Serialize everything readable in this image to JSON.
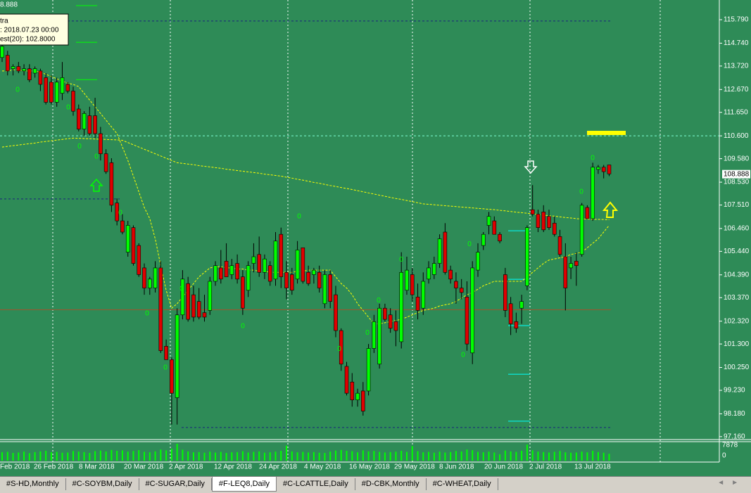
{
  "header_text": "8.888",
  "tooltip": {
    "lines": [
      "tra",
      ": 2018.07.23 00:00",
      "est(20): 102.8000"
    ]
  },
  "tabs": [
    "#S-HD,Monthly",
    "#C-SOYBM,Daily",
    "#C-SUGAR,Daily",
    "#F-LEQ8,Daily",
    "#C-LCATTLE,Daily",
    "#D-CBK,Monthly",
    "#C-WHEAT,Daily"
  ],
  "active_tab": "#F-LEQ8,Daily",
  "chart_data": {
    "type": "candlestick",
    "background": "#2e8b57",
    "up_color": "#00ff00",
    "down_color": "#e00000",
    "wick_color": "#000000",
    "ylim": [
      97.03,
      116.67
    ],
    "yticks": [
      {
        "value": 115.79,
        "label": "115.790"
      },
      {
        "value": 114.74,
        "label": "114.740"
      },
      {
        "value": 113.72,
        "label": "113.720"
      },
      {
        "value": 112.67,
        "label": "112.670"
      },
      {
        "value": 111.65,
        "label": "111.650"
      },
      {
        "value": 110.6,
        "label": "110.600"
      },
      {
        "value": 109.58,
        "label": "109.580"
      },
      {
        "value": 108.53,
        "label": "108.530"
      },
      {
        "value": 107.51,
        "label": "107.510"
      },
      {
        "value": 106.46,
        "label": "106.460"
      },
      {
        "value": 105.44,
        "label": "105.440"
      },
      {
        "value": 104.39,
        "label": "104.390"
      },
      {
        "value": 103.37,
        "label": "103.370"
      },
      {
        "value": 102.32,
        "label": "102.320"
      },
      {
        "value": 101.3,
        "label": "101.300"
      },
      {
        "value": 100.25,
        "label": "100.250"
      },
      {
        "value": 99.23,
        "label": "99.230"
      },
      {
        "value": 98.18,
        "label": "98.180"
      },
      {
        "value": 97.16,
        "label": "97.160"
      }
    ],
    "last": 108.888,
    "x_labels": [
      "Feb 2018",
      "26 Feb 2018",
      "8 Mar 2018",
      "20 Mar 2018",
      "2 Apr 2018",
      "12 Apr 2018",
      "24 Apr 2018",
      "4 May 2018",
      "16 May 2018",
      "29 May 2018",
      "8 Jun 2018",
      "20 Jun 2018",
      "2 Jul 2018",
      "13 Jul 2018"
    ],
    "ohlc": [
      [
        114.1,
        114.9,
        113.9,
        114.6
      ],
      [
        114.2,
        114.4,
        113.3,
        113.5
      ],
      [
        113.6,
        113.8,
        113.3,
        113.7
      ],
      [
        113.7,
        113.9,
        113.4,
        113.5
      ],
      [
        113.5,
        113.8,
        113.3,
        113.6
      ],
      [
        113.6,
        113.8,
        113.0,
        113.1
      ],
      [
        113.4,
        113.7,
        113.2,
        113.6
      ],
      [
        113.5,
        113.6,
        112.6,
        112.9
      ],
      [
        113.2,
        113.4,
        112.0,
        112.1
      ],
      [
        113.0,
        113.3,
        112.0,
        112.1
      ],
      [
        112.1,
        113.2,
        111.9,
        113.0
      ],
      [
        112.5,
        113.9,
        112.2,
        113.2
      ],
      [
        112.9,
        113.0,
        112.5,
        112.6
      ],
      [
        112.6,
        112.8,
        111.5,
        111.7
      ],
      [
        111.8,
        112.0,
        110.8,
        110.9
      ],
      [
        110.9,
        111.7,
        110.6,
        111.6
      ],
      [
        111.5,
        111.9,
        110.6,
        110.7
      ],
      [
        111.5,
        112.3,
        110.5,
        110.7
      ],
      [
        110.7,
        111.0,
        109.5,
        109.8
      ],
      [
        109.8,
        110.0,
        108.9,
        109.0
      ],
      [
        109.4,
        109.6,
        107.2,
        107.5
      ],
      [
        107.6,
        107.8,
        106.6,
        106.8
      ],
      [
        106.8,
        107.1,
        106.2,
        106.3
      ],
      [
        105.4,
        106.8,
        105.2,
        106.6
      ],
      [
        106.5,
        106.6,
        104.8,
        104.9
      ],
      [
        105.7,
        105.8,
        104.3,
        104.4
      ],
      [
        104.7,
        104.9,
        103.5,
        103.8
      ],
      [
        103.8,
        104.3,
        103.5,
        104.2
      ],
      [
        103.8,
        105.0,
        103.6,
        104.7
      ],
      [
        104.7,
        105.0,
        100.9,
        101.0
      ],
      [
        101.2,
        101.5,
        100.6,
        100.6
      ],
      [
        100.6,
        100.7,
        97.7,
        99.1
      ],
      [
        98.9,
        102.9,
        97.7,
        102.6
      ],
      [
        102.6,
        104.6,
        102.4,
        104.2
      ],
      [
        104.0,
        104.3,
        102.3,
        102.4
      ],
      [
        103.5,
        103.9,
        102.3,
        102.5
      ],
      [
        103.2,
        103.8,
        102.4,
        102.5
      ],
      [
        102.7,
        103.5,
        102.3,
        102.5
      ],
      [
        102.8,
        104.3,
        102.6,
        104.1
      ],
      [
        104.1,
        105.0,
        103.9,
        104.8
      ],
      [
        104.7,
        105.5,
        104.0,
        104.2
      ],
      [
        105.0,
        105.8,
        104.3,
        104.3
      ],
      [
        104.4,
        105.1,
        104.2,
        104.8
      ],
      [
        104.9,
        105.3,
        104.0,
        104.2
      ],
      [
        104.3,
        104.6,
        102.6,
        102.9
      ],
      [
        103.7,
        105.0,
        103.4,
        104.8
      ],
      [
        104.9,
        105.8,
        104.5,
        105.2
      ],
      [
        105.3,
        106.1,
        104.3,
        104.5
      ],
      [
        104.5,
        105.3,
        104.2,
        105.1
      ],
      [
        104.8,
        105.0,
        103.9,
        104.1
      ],
      [
        104.2,
        106.3,
        103.9,
        105.9
      ],
      [
        106.2,
        106.5,
        103.8,
        104.3
      ],
      [
        104.5,
        105.0,
        103.3,
        103.8
      ],
      [
        104.4,
        104.7,
        103.5,
        103.7
      ],
      [
        104.2,
        105.9,
        104.0,
        105.5
      ],
      [
        105.6,
        105.6,
        104.0,
        104.1
      ],
      [
        104.5,
        104.8,
        103.9,
        104.0
      ],
      [
        104.4,
        104.7,
        104.0,
        104.6
      ],
      [
        104.5,
        104.8,
        103.6,
        103.8
      ],
      [
        103.1,
        104.6,
        102.9,
        104.4
      ],
      [
        104.4,
        104.6,
        102.9,
        103.2
      ],
      [
        103.5,
        103.9,
        101.6,
        101.9
      ],
      [
        101.9,
        102.0,
        100.1,
        100.4
      ],
      [
        100.3,
        100.5,
        99.0,
        99.1
      ],
      [
        99.6,
        100.0,
        98.5,
        98.8
      ],
      [
        98.8,
        99.3,
        98.5,
        99.1
      ],
      [
        99.2,
        99.6,
        98.1,
        98.3
      ],
      [
        99.2,
        101.3,
        99.0,
        101.1
      ],
      [
        101.1,
        102.6,
        100.9,
        102.3
      ],
      [
        100.4,
        103.1,
        100.2,
        102.9
      ],
      [
        102.9,
        103.1,
        102.3,
        102.4
      ],
      [
        102.6,
        102.9,
        101.8,
        102.0
      ],
      [
        102.3,
        102.8,
        101.2,
        101.9
      ],
      [
        101.4,
        105.4,
        101.1,
        104.5
      ],
      [
        103.7,
        105.2,
        103.5,
        104.6
      ],
      [
        104.4,
        104.7,
        103.2,
        103.5
      ],
      [
        103.4,
        104.0,
        102.4,
        102.8
      ],
      [
        102.9,
        104.5,
        102.6,
        104.1
      ],
      [
        104.2,
        105.0,
        104.0,
        104.7
      ],
      [
        104.4,
        105.2,
        104.2,
        104.9
      ],
      [
        104.9,
        106.2,
        104.7,
        106.0
      ],
      [
        106.3,
        106.7,
        104.4,
        104.5
      ],
      [
        104.6,
        104.8,
        104.0,
        104.2
      ],
      [
        104.1,
        104.5,
        103.1,
        103.8
      ],
      [
        103.8,
        104.2,
        103.3,
        103.6
      ],
      [
        103.4,
        104.1,
        101.0,
        101.3
      ],
      [
        100.9,
        105.0,
        100.4,
        104.7
      ],
      [
        104.6,
        105.8,
        104.3,
        105.4
      ],
      [
        105.7,
        106.3,
        105.5,
        106.2
      ],
      [
        106.6,
        107.2,
        106.2,
        107.0
      ],
      [
        106.8,
        107.0,
        106.2,
        106.2
      ],
      [
        106.2,
        106.3,
        105.8,
        105.9
      ],
      [
        104.4,
        104.7,
        102.5,
        102.8
      ],
      [
        103.1,
        103.4,
        101.7,
        102.2
      ],
      [
        102.3,
        102.7,
        101.8,
        102.0
      ],
      [
        102.9,
        103.5,
        102.2,
        103.2
      ],
      [
        103.9,
        106.6,
        103.7,
        106.5
      ],
      [
        107.3,
        108.4,
        107.0,
        107.1
      ],
      [
        107.1,
        107.3,
        106.3,
        106.5
      ],
      [
        107.2,
        107.5,
        106.3,
        106.4
      ],
      [
        107.0,
        107.3,
        106.4,
        106.5
      ],
      [
        106.7,
        107.0,
        106.1,
        106.2
      ],
      [
        106.1,
        106.4,
        105.2,
        105.3
      ],
      [
        105.2,
        105.8,
        102.8,
        103.8
      ],
      [
        104.7,
        105.2,
        104.2,
        104.9
      ],
      [
        105.0,
        105.4,
        103.9,
        104.8
      ],
      [
        105.3,
        107.6,
        105.2,
        107.5
      ],
      [
        107.4,
        107.5,
        106.9,
        106.9
      ],
      [
        106.9,
        109.4,
        106.8,
        109.2
      ],
      [
        109.1,
        109.3,
        108.9,
        109.2
      ],
      [
        109.2,
        109.3,
        108.7,
        109.0
      ],
      [
        109.3,
        109.3,
        108.8,
        108.9
      ]
    ],
    "lines": [
      {
        "color": "#ffff00",
        "values": [
          110.1,
          110.13,
          110.16,
          110.19,
          110.22,
          110.25,
          110.28,
          110.32,
          110.35,
          110.38,
          110.41,
          110.44,
          110.47,
          110.5,
          110.49,
          110.48,
          110.47,
          110.46,
          110.45,
          110.44,
          110.43,
          110.42,
          110.4,
          110.3,
          110.2,
          110.1,
          110.0,
          109.9,
          109.8,
          109.7,
          109.6,
          109.5,
          109.4,
          109.37,
          109.34,
          109.31,
          109.27,
          109.24,
          109.21,
          109.18,
          109.15,
          109.11,
          109.08,
          109.05,
          109.02,
          108.99,
          108.96,
          108.93,
          108.89,
          108.86,
          108.83,
          108.8,
          108.75,
          108.71,
          108.66,
          108.62,
          108.57,
          108.52,
          108.48,
          108.43,
          108.38,
          108.34,
          108.29,
          108.25,
          108.2,
          108.15,
          108.1,
          108.05,
          108.0,
          107.95,
          107.9,
          107.85,
          107.8,
          107.76,
          107.71,
          107.66,
          107.61,
          107.56,
          107.54,
          107.52,
          107.5,
          107.48,
          107.46,
          107.44,
          107.42,
          107.4,
          107.38,
          107.36,
          107.34,
          107.32,
          107.3,
          107.27,
          107.25,
          107.22,
          107.19,
          107.17,
          107.14,
          107.11,
          107.09,
          107.06,
          107.03,
          107.01,
          106.98,
          106.95,
          106.93,
          106.9,
          106.89,
          106.88,
          106.87,
          106.87,
          106.86,
          106.85
        ]
      },
      {
        "color": "#ffff00",
        "values": [
          113.5,
          113.5,
          113.55,
          113.55,
          113.5,
          113.5,
          113.5,
          113.45,
          113.35,
          113.25,
          113.15,
          113.05,
          112.95,
          112.9,
          112.8,
          112.5,
          112.2,
          111.9,
          111.6,
          111.3,
          111.0,
          110.7,
          110.1,
          109.5,
          108.8,
          108.1,
          107.4,
          106.9,
          106.0,
          104.8,
          103.7,
          102.9,
          103.1,
          103.4,
          103.7,
          104.0,
          104.3,
          104.5,
          104.7,
          104.75,
          104.75,
          104.7,
          104.7,
          104.65,
          104.65,
          104.6,
          104.6,
          104.55,
          104.55,
          104.5,
          104.5,
          104.5,
          104.5,
          104.5,
          104.55,
          104.55,
          104.6,
          104.6,
          104.6,
          104.6,
          104.6,
          104.3,
          104.0,
          103.8,
          103.5,
          103.1,
          102.8,
          102.5,
          102.2,
          102.2,
          102.25,
          102.3,
          102.35,
          102.4,
          102.5,
          102.6,
          102.7,
          102.8,
          102.85,
          102.9,
          103.0,
          103.05,
          103.1,
          103.2,
          103.35,
          103.5,
          103.6,
          103.75,
          103.9,
          104.0,
          104.1,
          104.1,
          104.1,
          104.1,
          104.1,
          104.1,
          104.3,
          104.5,
          104.7,
          104.9,
          105.05,
          105.1,
          105.15,
          105.2,
          105.3,
          105.35,
          105.4,
          105.6,
          105.8,
          106.0,
          106.3,
          106.6
        ]
      }
    ],
    "levels": [
      {
        "value": 115.73,
        "color": "#1a237e",
        "dashed": true
      },
      {
        "value": 107.78,
        "color": "#1a237e",
        "dashed": true
      },
      {
        "value": 97.57,
        "color": "#1a237e",
        "dashed": true
      },
      {
        "value": 110.6,
        "color": "#7fffd4",
        "dashed": true
      },
      {
        "value": 102.83,
        "color": "#a0522d",
        "dashed": false
      },
      {
        "value": 110.73,
        "color": "#ffff00",
        "dashed": false
      },
      {
        "value": 116.42,
        "color": "#00ff00",
        "dashed": false
      },
      {
        "value": 114.78,
        "color": "#00ff00",
        "dashed": false
      },
      {
        "value": 113.11,
        "color": "#00ff00",
        "dashed": false
      },
      {
        "value": 106.36,
        "color": "#00ffff",
        "dashed": false
      },
      {
        "value": 104.19,
        "color": "#00ffff",
        "dashed": false
      },
      {
        "value": 102.12,
        "color": "#00ffff",
        "dashed": false
      },
      {
        "value": 99.95,
        "color": "#00ffff",
        "dashed": false
      },
      {
        "value": 97.85,
        "color": "#00ffff",
        "dashed": false
      }
    ],
    "markers": [
      {
        "label": "0",
        "value": 112.65
      },
      {
        "label": "0",
        "value": 111.86
      },
      {
        "label": "0",
        "value": 110.13
      },
      {
        "label": "0",
        "value": 109.66
      },
      {
        "label": "0",
        "value": 107.15
      },
      {
        "label": "0",
        "value": 102.66
      },
      {
        "label": "0",
        "value": 100.24
      },
      {
        "label": "0",
        "value": 103.76
      },
      {
        "label": "0",
        "value": 102.1
      },
      {
        "label": "0",
        "value": 107.0
      },
      {
        "label": "0",
        "value": 101.08
      },
      {
        "label": "0",
        "value": 101.8
      },
      {
        "label": "0",
        "value": 103.24
      },
      {
        "label": "0",
        "value": 105.07
      },
      {
        "label": "0",
        "value": 100.8
      },
      {
        "label": "0",
        "value": 105.76
      },
      {
        "label": "0",
        "value": 108.09
      },
      {
        "label": "0",
        "value": 109.6
      }
    ],
    "volume": {
      "color": "#00ff00",
      "vlim": [
        0,
        7878
      ],
      "vticks": [
        7878,
        0
      ],
      "values": [
        3900,
        4100,
        3600,
        3800,
        4200,
        3500,
        4000,
        4300,
        4600,
        3900,
        4100,
        3700,
        3800,
        4500,
        4200,
        4000,
        3600,
        4400,
        4700,
        4300,
        5000,
        4600,
        4800,
        4200,
        4500,
        4900,
        4100,
        3900,
        4300,
        5200,
        4800,
        5600,
        7878,
        5100,
        4300,
        3900,
        4000,
        3700,
        4200,
        3800,
        4100,
        3600,
        3900,
        4000,
        4400,
        3800,
        4100,
        4300,
        3700,
        3900,
        4200,
        4600,
        7000,
        4300,
        3900,
        4100,
        3800,
        4000,
        3700,
        3600,
        4200,
        4700,
        5000,
        4600,
        4400,
        3900,
        4800,
        4300,
        4500,
        4100,
        3800,
        4000,
        4200,
        4600,
        4100,
        6800,
        4400,
        3900,
        4100,
        3700,
        4200,
        3800,
        4000,
        4500,
        4300,
        5200,
        4900,
        4100,
        3900,
        4200,
        3800,
        3000,
        4700,
        4300,
        4100,
        4600,
        7500,
        4800,
        4200,
        4000,
        3800,
        4100,
        4500,
        3900,
        3700,
        3800,
        4200,
        3900,
        4600,
        4000,
        3700,
        3200
      ]
    }
  }
}
